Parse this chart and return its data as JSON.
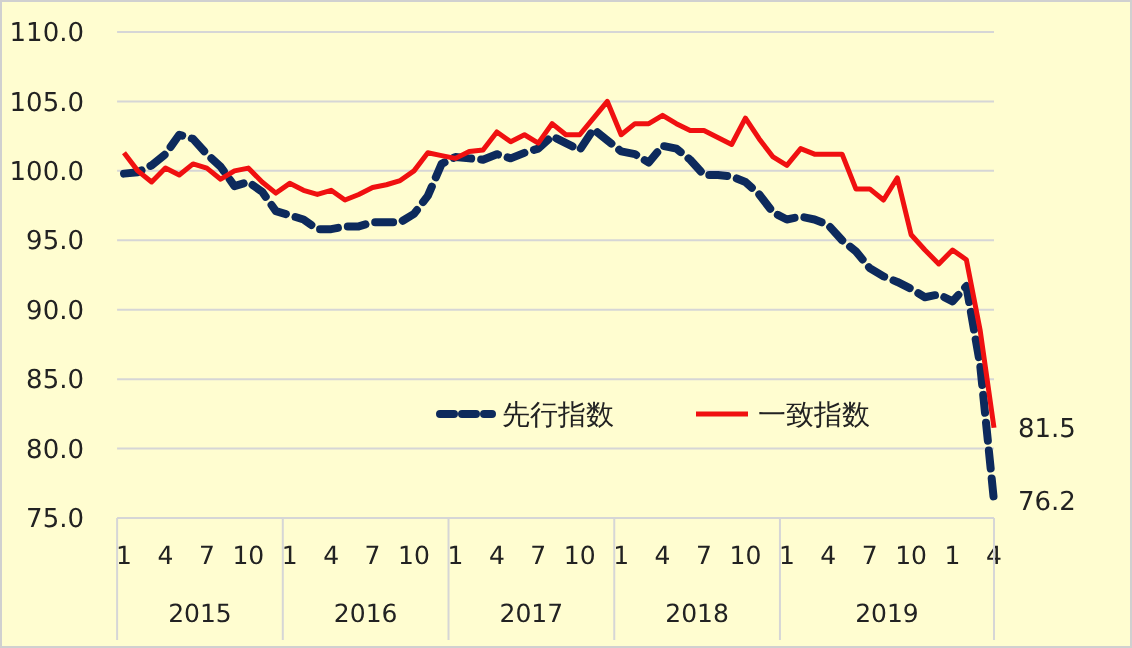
{
  "chart_data": {
    "type": "line",
    "categories": [
      "1",
      null,
      null,
      "4",
      null,
      null,
      "7",
      null,
      null,
      "10",
      null,
      null,
      "1",
      null,
      null,
      "4",
      null,
      null,
      "7",
      null,
      null,
      "10",
      null,
      null,
      "1",
      null,
      null,
      "4",
      null,
      null,
      "7",
      null,
      null,
      "10",
      null,
      null,
      "1",
      null,
      null,
      "4",
      null,
      null,
      "7",
      null,
      null,
      "10",
      null,
      null,
      "1",
      null,
      null,
      "4",
      null,
      null,
      "7",
      null,
      null,
      "10",
      null,
      null,
      "1",
      null,
      null,
      "4"
    ],
    "annotations": [
      "2015",
      "2016",
      "2017",
      "2018",
      "2019"
    ],
    "ylim": [
      75,
      110
    ],
    "yticks": [
      {
        "value": 75,
        "label": "75.0"
      },
      {
        "value": 80,
        "label": "80.0"
      },
      {
        "value": 85,
        "label": "85.0"
      },
      {
        "value": 90,
        "label": "90.0"
      },
      {
        "value": 95,
        "label": "95.0"
      },
      {
        "value": 100,
        "label": "100.0"
      },
      {
        "value": 105,
        "label": "105.0"
      },
      {
        "value": 110,
        "label": "110.0"
      }
    ],
    "grid": "y",
    "legend": "bottom",
    "marker": "none",
    "series": [
      {
        "name": "先行指数",
        "color": "#0d2a5c",
        "line_style": "dashed",
        "values": [
          99.8,
          99.9,
          100.4,
          101.2,
          102.6,
          102.3,
          101.2,
          100.3,
          98.9,
          99.2,
          98.5,
          97.1,
          96.8,
          96.5,
          95.8,
          95.8,
          96.0,
          96.0,
          96.3,
          96.3,
          96.3,
          96.9,
          98.2,
          100.5,
          101.0,
          100.9,
          100.8,
          101.2,
          100.9,
          101.3,
          101.6,
          102.5,
          102.0,
          101.5,
          103.0,
          102.2,
          101.4,
          101.2,
          100.6,
          101.8,
          101.6,
          100.8,
          99.7,
          99.7,
          99.6,
          99.2,
          98.3,
          97.0,
          96.5,
          96.7,
          96.5,
          96.1,
          95.0,
          94.2,
          93.0,
          92.4,
          92.0,
          91.5,
          90.9,
          91.1,
          90.6,
          91.7,
          86.0,
          76.2
        ],
        "value_labels": [
          null,
          null,
          null,
          null,
          null,
          null,
          null,
          null,
          null,
          null,
          null,
          null,
          null,
          null,
          null,
          null,
          null,
          null,
          null,
          null,
          null,
          null,
          null,
          null,
          null,
          null,
          null,
          null,
          null,
          null,
          null,
          null,
          null,
          null,
          null,
          null,
          null,
          null,
          null,
          null,
          null,
          null,
          null,
          null,
          null,
          null,
          null,
          null,
          null,
          null,
          null,
          null,
          null,
          null,
          null,
          null,
          null,
          null,
          null,
          null,
          null,
          null,
          null,
          "76.2"
        ]
      },
      {
        "name": "一致指数",
        "color": "#f01010",
        "line_style": "solid",
        "values": [
          101.3,
          100.0,
          99.2,
          100.2,
          99.7,
          100.5,
          100.2,
          99.4,
          100.0,
          100.2,
          99.2,
          98.4,
          99.1,
          98.6,
          98.3,
          98.6,
          97.9,
          98.3,
          98.8,
          99.0,
          99.3,
          100.0,
          101.3,
          101.1,
          100.9,
          101.4,
          101.5,
          102.8,
          102.1,
          102.6,
          102.0,
          103.4,
          102.6,
          102.6,
          103.8,
          105.0,
          102.6,
          103.4,
          103.4,
          104.0,
          103.4,
          102.9,
          102.9,
          102.4,
          101.9,
          103.8,
          102.3,
          101.0,
          100.4,
          101.6,
          101.2,
          101.2,
          101.2,
          98.7,
          98.7,
          97.9,
          99.5,
          95.4,
          94.3,
          93.3,
          94.3,
          93.6,
          88.5,
          81.5
        ],
        "value_labels": [
          null,
          null,
          null,
          null,
          null,
          null,
          null,
          null,
          null,
          null,
          null,
          null,
          null,
          null,
          null,
          null,
          null,
          null,
          null,
          null,
          null,
          null,
          null,
          null,
          null,
          null,
          null,
          null,
          null,
          null,
          null,
          null,
          null,
          null,
          null,
          null,
          null,
          null,
          null,
          null,
          null,
          null,
          null,
          null,
          null,
          null,
          null,
          null,
          null,
          null,
          null,
          null,
          null,
          null,
          null,
          null,
          null,
          null,
          null,
          null,
          null,
          null,
          null,
          "81.5"
        ]
      }
    ]
  }
}
